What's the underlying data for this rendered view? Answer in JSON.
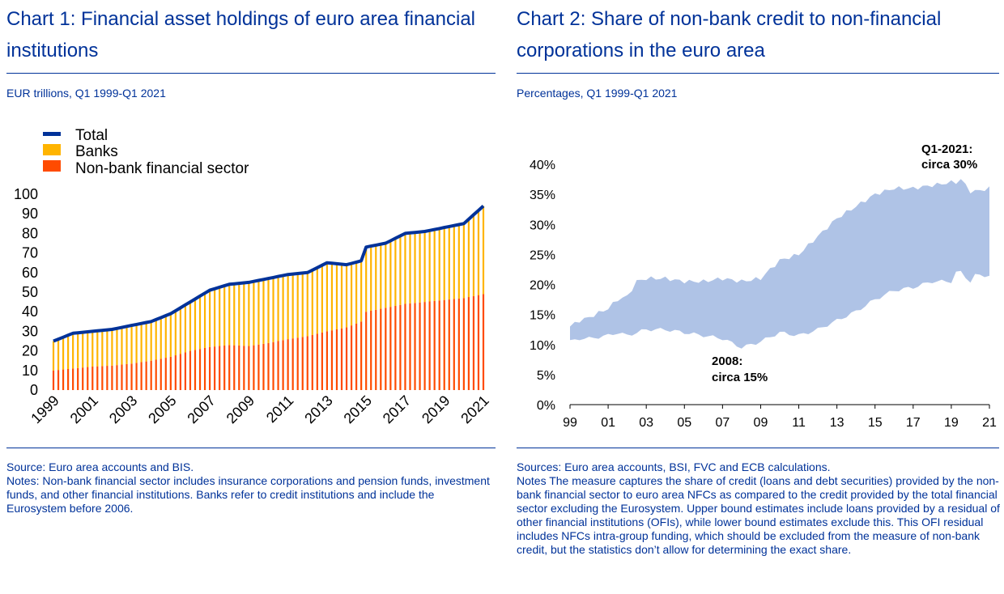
{
  "chart1": {
    "title": "Chart 1: Financial asset holdings of euro area financial institutions",
    "subtitle": "EUR trillions, Q1 1999-Q1 2021",
    "source": "Source: Euro area accounts and BIS.",
    "notes": "Notes: Non-bank financial sector includes insurance corporations and pension funds, investment funds, and other financial institutions. Banks refer to credit institutions and include the Eurosystem before 2006."
  },
  "chart2": {
    "title": "Chart 2: Share of non-bank credit to non-financial corporations in the euro area",
    "subtitle": "Percentages, Q1 1999-Q1 2021",
    "source": "Sources: Euro area accounts, BSI, FVC and ECB calculations.",
    "notes": "Notes The measure captures the share of credit (loans and debt securities) provided by the non-bank financial sector to euro area NFCs as compared to the credit provided by the total financial sector excluding the Eurosystem. Upper bound estimates include loans provided by a residual of other financial institutions (OFIs), while lower bound estimates exclude this. This OFI residual includes NFCs intra-group funding, which should be excluded from the measure of non-bank credit, but the statistics don’t allow for determining the exact share."
  },
  "colors": {
    "text": "#003299",
    "total": "#003299",
    "banks": "#FFB400",
    "nonbank": "#FF4B00",
    "range": "#AFC3E6"
  },
  "chart_data": [
    {
      "type": "bar",
      "stacked": true,
      "title": "",
      "ylim": [
        0,
        100
      ],
      "yticks": [
        "0",
        "10",
        "20",
        "30",
        "40",
        "50",
        "60",
        "70",
        "80",
        "90",
        "100"
      ],
      "xticks": [
        "1999",
        "2001",
        "2003",
        "2005",
        "2007",
        "2009",
        "2011",
        "2013",
        "2015",
        "2017",
        "2019",
        "2021"
      ],
      "legend": {
        "position": "top-left",
        "entries": [
          "Total",
          "Banks",
          "Non-bank financial sector"
        ]
      },
      "grid": false,
      "x_start": "Q1 1999",
      "x_end": "Q1 2021",
      "anchors": {
        "years": [
          1999,
          2000,
          2001,
          2002,
          2003,
          2004,
          2005,
          2006,
          2007,
          2008,
          2009,
          2010,
          2011,
          2012,
          2013,
          2014,
          2014.75,
          2015,
          2016,
          2017,
          2018,
          2019,
          2020,
          2021
        ],
        "total": [
          25,
          29,
          30,
          31,
          33,
          35,
          39,
          45,
          51,
          54,
          55,
          57,
          59,
          60,
          65,
          64,
          66,
          73,
          75,
          80,
          81,
          83,
          85,
          94
        ],
        "nonbank": [
          10,
          11,
          12,
          12.5,
          13.5,
          15,
          17,
          20,
          22,
          23,
          22.5,
          24,
          26,
          27.5,
          30,
          32,
          35,
          40,
          42,
          44,
          45,
          46,
          47,
          49
        ]
      },
      "series": [
        {
          "name": "Total"
        },
        {
          "name": "Banks"
        },
        {
          "name": "Non-bank financial sector"
        }
      ]
    },
    {
      "type": "area",
      "subtype": "range",
      "title": "",
      "ylim": [
        0,
        40
      ],
      "yticks": [
        "0%",
        "5%",
        "10%",
        "15%",
        "20%",
        "25%",
        "30%",
        "35%",
        "40%"
      ],
      "xticks": [
        "99",
        "01",
        "03",
        "05",
        "07",
        "09",
        "11",
        "13",
        "15",
        "17",
        "19",
        "21"
      ],
      "grid": false,
      "x_start": "Q1 1999",
      "x_end": "Q1 2021",
      "annotations": [
        {
          "line1": "Q1-2021:",
          "line2": "circa 30%"
        },
        {
          "line1": "2008:",
          "line2": "circa 15%"
        }
      ],
      "anchors": {
        "years": [
          1999,
          1999.5,
          2000,
          2001,
          2001.5,
          2002,
          2002.5,
          2003,
          2004,
          2005,
          2006,
          2007,
          2008,
          2009,
          2010,
          2011,
          2012,
          2013,
          2014,
          2015,
          2016,
          2017,
          2018,
          2019,
          2019.25,
          2019.5,
          2020,
          2020.25,
          2021
        ],
        "upper": [
          13,
          14,
          14.5,
          16,
          17.5,
          18,
          20.5,
          21,
          21,
          20.5,
          20.5,
          21,
          20.5,
          21,
          24,
          25,
          28,
          31,
          33,
          35,
          36,
          36,
          36.5,
          37,
          37,
          37.5,
          35.5,
          35.5,
          36
        ],
        "lower": [
          10.5,
          11,
          11,
          11.5,
          12,
          11.5,
          12,
          12.5,
          12.5,
          12,
          11.5,
          11,
          9.5,
          10.5,
          12,
          11.5,
          12.5,
          14,
          15.5,
          17.5,
          19,
          19.5,
          20.5,
          20.5,
          22,
          22,
          20.5,
          21.5,
          21.5
        ]
      },
      "series": []
    }
  ]
}
